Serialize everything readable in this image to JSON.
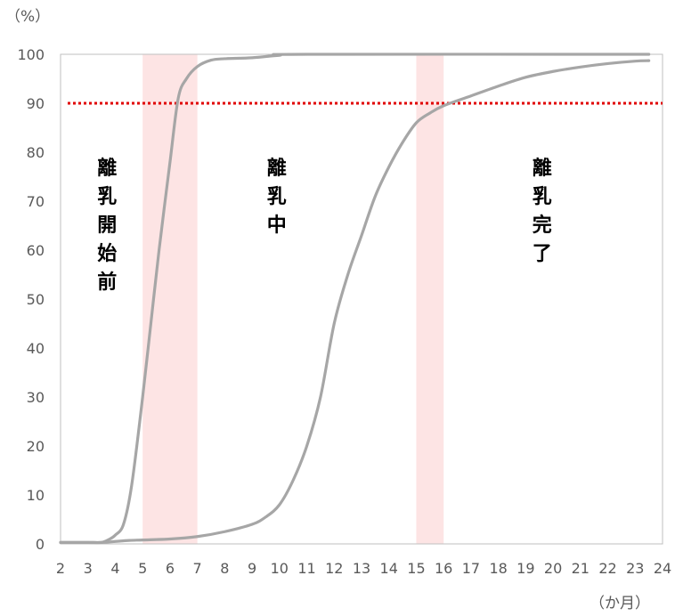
{
  "chart_data": {
    "type": "line",
    "title": "",
    "xlabel": "（か月）",
    "ylabel": "（%）",
    "xlim": [
      2,
      24
    ],
    "ylim": [
      0,
      100
    ],
    "x_ticks": [
      "2",
      "3",
      "4",
      "5",
      "6",
      "7",
      "8",
      "9",
      "10",
      "11",
      "12",
      "13",
      "14",
      "15",
      "16",
      "17",
      "18",
      "19",
      "20",
      "21",
      "22",
      "23",
      "24"
    ],
    "y_ticks": [
      "0",
      "10",
      "20",
      "30",
      "40",
      "50",
      "60",
      "70",
      "80",
      "90",
      "100"
    ],
    "grid": false,
    "reference_line": {
      "y": 90,
      "style": "dotted",
      "color": "#e00000"
    },
    "shaded_bands": [
      {
        "x": [
          5,
          7
        ],
        "color": "#fde4e4"
      },
      {
        "x": [
          15,
          16
        ],
        "color": "#fde4e4"
      }
    ],
    "phase_labels": [
      {
        "text": "離乳開始前",
        "x": 3.7,
        "y": 75
      },
      {
        "text": "離乳中",
        "x": 9.9,
        "y": 75
      },
      {
        "text": "離乳完了",
        "x": 19.6,
        "y": 75
      }
    ],
    "series": [
      {
        "color": "#a6a6a6",
        "points": [
          [
            2,
            0.3
          ],
          [
            3,
            0.3
          ],
          [
            3.5,
            0.3
          ],
          [
            3.8,
            1.0
          ],
          [
            4.0,
            1.8
          ],
          [
            4.3,
            4
          ],
          [
            4.6,
            12
          ],
          [
            5.0,
            30
          ],
          [
            5.3,
            45
          ],
          [
            5.6,
            60
          ],
          [
            6.0,
            78
          ],
          [
            6.3,
            91
          ],
          [
            6.6,
            95
          ],
          [
            7.0,
            97.5
          ],
          [
            7.5,
            98.8
          ],
          [
            8,
            99.1
          ],
          [
            9,
            99.3
          ],
          [
            10,
            99.8
          ],
          [
            11,
            100
          ],
          [
            23.5,
            100
          ]
        ]
      },
      {
        "color": "#a6a6a6",
        "points": [
          [
            2,
            0.3
          ],
          [
            3,
            0.3
          ],
          [
            3.5,
            0.3
          ],
          [
            4,
            0.5
          ],
          [
            4.5,
            0.7
          ],
          [
            5,
            0.8
          ],
          [
            6,
            1.0
          ],
          [
            7,
            1.5
          ],
          [
            8,
            2.5
          ],
          [
            9,
            4
          ],
          [
            9.5,
            5.5
          ],
          [
            10,
            8
          ],
          [
            10.5,
            13
          ],
          [
            11,
            20
          ],
          [
            11.5,
            30
          ],
          [
            12,
            45
          ],
          [
            12.5,
            55
          ],
          [
            13,
            63
          ],
          [
            13.5,
            71
          ],
          [
            14,
            77
          ],
          [
            14.5,
            82
          ],
          [
            15,
            86
          ],
          [
            15.5,
            88
          ],
          [
            16,
            89.5
          ],
          [
            17,
            91.5
          ],
          [
            18,
            93.5
          ],
          [
            19,
            95.3
          ],
          [
            20,
            96.5
          ],
          [
            21,
            97.4
          ],
          [
            22,
            98.1
          ],
          [
            23,
            98.6
          ],
          [
            23.5,
            98.7
          ]
        ]
      }
    ]
  }
}
